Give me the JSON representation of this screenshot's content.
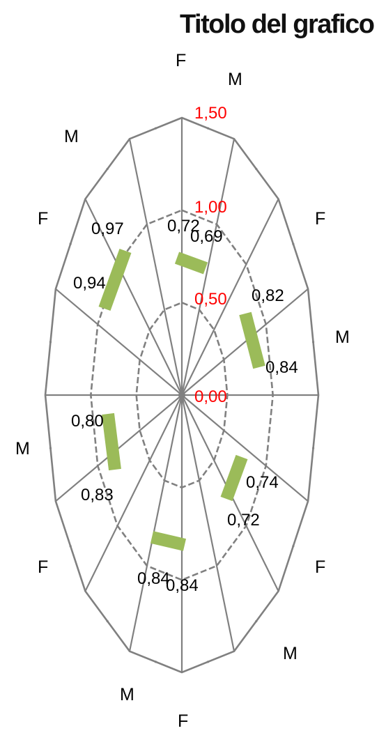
{
  "chart_data": {
    "type": "radar",
    "title": "Titolo del grafico",
    "categories": [
      "F",
      "M",
      "F",
      "M",
      "F",
      "M",
      "F",
      "M",
      "F",
      "M",
      "F",
      "M",
      "F",
      "M",
      "F",
      "M"
    ],
    "r_ticks": [
      "0,00",
      "0,50",
      "1,00",
      "1,50"
    ],
    "r_tick_values": [
      0,
      0.5,
      1.0,
      1.5
    ],
    "rlim": [
      0,
      1.5
    ],
    "grid": true,
    "legend": "none",
    "colors": {
      "series": "#9bbb59",
      "grid": "#808080",
      "tick_label": "#ff0000"
    },
    "data_labels": [
      {
        "text": "0,72",
        "category_index": 0
      },
      {
        "text": "0,69",
        "category_index": 1
      },
      {
        "text": "0,82",
        "category_index": 3
      },
      {
        "text": "0,84",
        "category_index": 4
      },
      {
        "text": "0,74",
        "category_index": 6
      },
      {
        "text": "0,72",
        "category_index": 6
      },
      {
        "text": "0,84",
        "category_index": 8
      },
      {
        "text": "0,84",
        "category_index": 8
      },
      {
        "text": "0,83",
        "category_index": 11
      },
      {
        "text": "0,80",
        "category_index": 11
      },
      {
        "text": "0,94",
        "category_index": 13
      },
      {
        "text": "0,97",
        "category_index": 14
      }
    ]
  }
}
